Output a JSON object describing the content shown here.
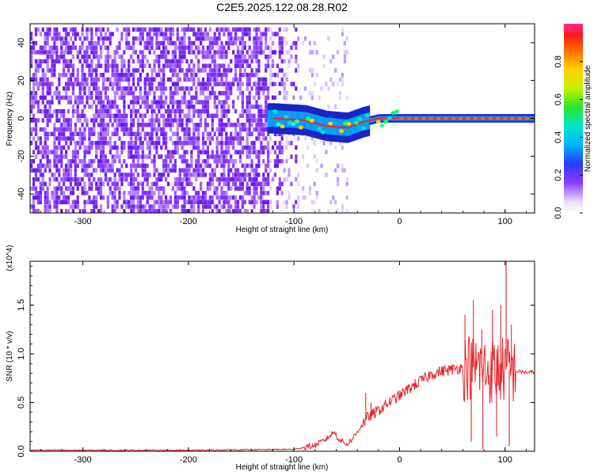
{
  "title": "C2E5.2025.122.08.28.R02",
  "colors": {
    "snr_line": "#e8252a",
    "axis": "#000000"
  },
  "chart_data": [
    {
      "type": "heatmap",
      "xlabel": "Height of straight line (km)",
      "ylabel": "Frequency (Hz)",
      "xlim": [
        -350,
        128
      ],
      "ylim": [
        -50,
        50
      ],
      "xticks": [
        -300,
        -200,
        -100,
        0,
        100
      ],
      "yticks": [
        -40,
        -20,
        0,
        20,
        40
      ],
      "colorbar": {
        "label": "Normalized spectral amplitude",
        "range": [
          0,
          1
        ],
        "ticks": [
          "0.0",
          "0.2",
          "0.4",
          "0.6",
          "0.8"
        ],
        "tick_values": [
          0.0,
          0.2,
          0.4,
          0.6,
          0.8
        ]
      },
      "ridge": [
        {
          "x": -120,
          "y": 0
        },
        {
          "x": -90,
          "y": -1
        },
        {
          "x": -70,
          "y": -4
        },
        {
          "x": -50,
          "y": -5
        },
        {
          "x": -35,
          "y": -2
        },
        {
          "x": -20,
          "y": 0
        },
        {
          "x": 0,
          "y": 0
        },
        {
          "x": 50,
          "y": 0
        },
        {
          "x": 100,
          "y": 0
        },
        {
          "x": 128,
          "y": 0
        }
      ]
    },
    {
      "type": "line",
      "xlabel": "Height of straight line (km)",
      "ylabel": "SNR (10 * v/v)",
      "y_multiplier": "(x10^4)",
      "xlim": [
        -350,
        128
      ],
      "ylim": [
        0,
        1.95
      ],
      "xticks": [
        -300,
        -200,
        -100,
        0,
        100
      ],
      "yticks": [
        "0.0",
        "0.5",
        "1.0",
        "1.5"
      ],
      "ytick_values": [
        0,
        0.5,
        1.0,
        1.5
      ],
      "series": [
        {
          "x": [
            -350,
            -300,
            -250,
            -200,
            -150,
            -100,
            -80,
            -70,
            -62,
            -58,
            -50,
            -45,
            -40,
            -35,
            -30,
            -25,
            -20,
            -10,
            0,
            10,
            20,
            30,
            40,
            50,
            55,
            60,
            65,
            70,
            75,
            80,
            85,
            90,
            95,
            100,
            105,
            110,
            120,
            128
          ],
          "values": [
            0.01,
            0.01,
            0.01,
            0.01,
            0.015,
            0.02,
            0.06,
            0.12,
            0.2,
            0.13,
            0.07,
            0.12,
            0.2,
            0.28,
            0.35,
            0.38,
            0.42,
            0.5,
            0.57,
            0.65,
            0.72,
            0.79,
            0.82,
            0.84,
            0.85,
            0.86,
            0.87,
            0.86,
            0.87,
            0.84,
            0.82,
            0.83,
            0.83,
            0.84,
            0.83,
            0.82,
            0.81,
            0.81
          ]
        }
      ],
      "spikes": [
        {
          "x": -32,
          "y": 0.6
        },
        {
          "x": -27,
          "y": 0.5
        },
        {
          "x": -22,
          "y": 0.42
        },
        {
          "x": 62,
          "y": 1.4
        },
        {
          "x": 70,
          "y": 1.55
        },
        {
          "x": 78,
          "y": 1.25
        },
        {
          "x": 88,
          "y": 1.45
        },
        {
          "x": 96,
          "y": 1.5
        },
        {
          "x": 101,
          "y": 1.95
        },
        {
          "x": 106,
          "y": 1.3
        }
      ],
      "dips": [
        {
          "x": 68,
          "y": 0.1
        },
        {
          "x": 79,
          "y": 0.02
        },
        {
          "x": 92,
          "y": 0.15
        },
        {
          "x": 104,
          "y": 0.05
        }
      ]
    }
  ]
}
